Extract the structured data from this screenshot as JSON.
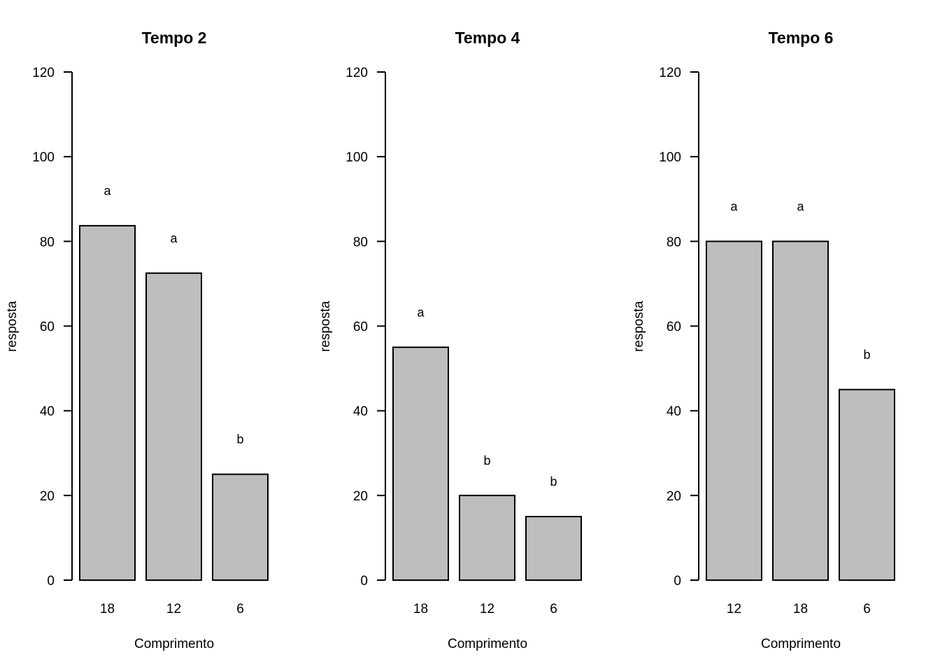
{
  "chart_data": [
    {
      "type": "bar",
      "title": "Tempo 2",
      "xlabel": "Comprimento",
      "ylabel": "resposta",
      "ylim": [
        0,
        120
      ],
      "yticks": [
        "0",
        "20",
        "40",
        "60",
        "80",
        "100",
        "120"
      ],
      "categories": [
        "18",
        "12",
        "6"
      ],
      "values": [
        83.7,
        72.5,
        25
      ],
      "annotations": [
        "a",
        "a",
        "b"
      ]
    },
    {
      "type": "bar",
      "title": "Tempo 4",
      "xlabel": "Comprimento",
      "ylabel": "resposta",
      "ylim": [
        0,
        120
      ],
      "yticks": [
        "0",
        "20",
        "40",
        "60",
        "80",
        "100",
        "120"
      ],
      "categories": [
        "18",
        "12",
        "6"
      ],
      "values": [
        55,
        20,
        15
      ],
      "annotations": [
        "a",
        "b",
        "b"
      ]
    },
    {
      "type": "bar",
      "title": "Tempo 6",
      "xlabel": "Comprimento",
      "ylabel": "resposta",
      "ylim": [
        0,
        120
      ],
      "yticks": [
        "0",
        "20",
        "40",
        "60",
        "80",
        "100",
        "120"
      ],
      "categories": [
        "12",
        "18",
        "6"
      ],
      "values": [
        80,
        80,
        45
      ],
      "annotations": [
        "a",
        "a",
        "b"
      ]
    }
  ]
}
